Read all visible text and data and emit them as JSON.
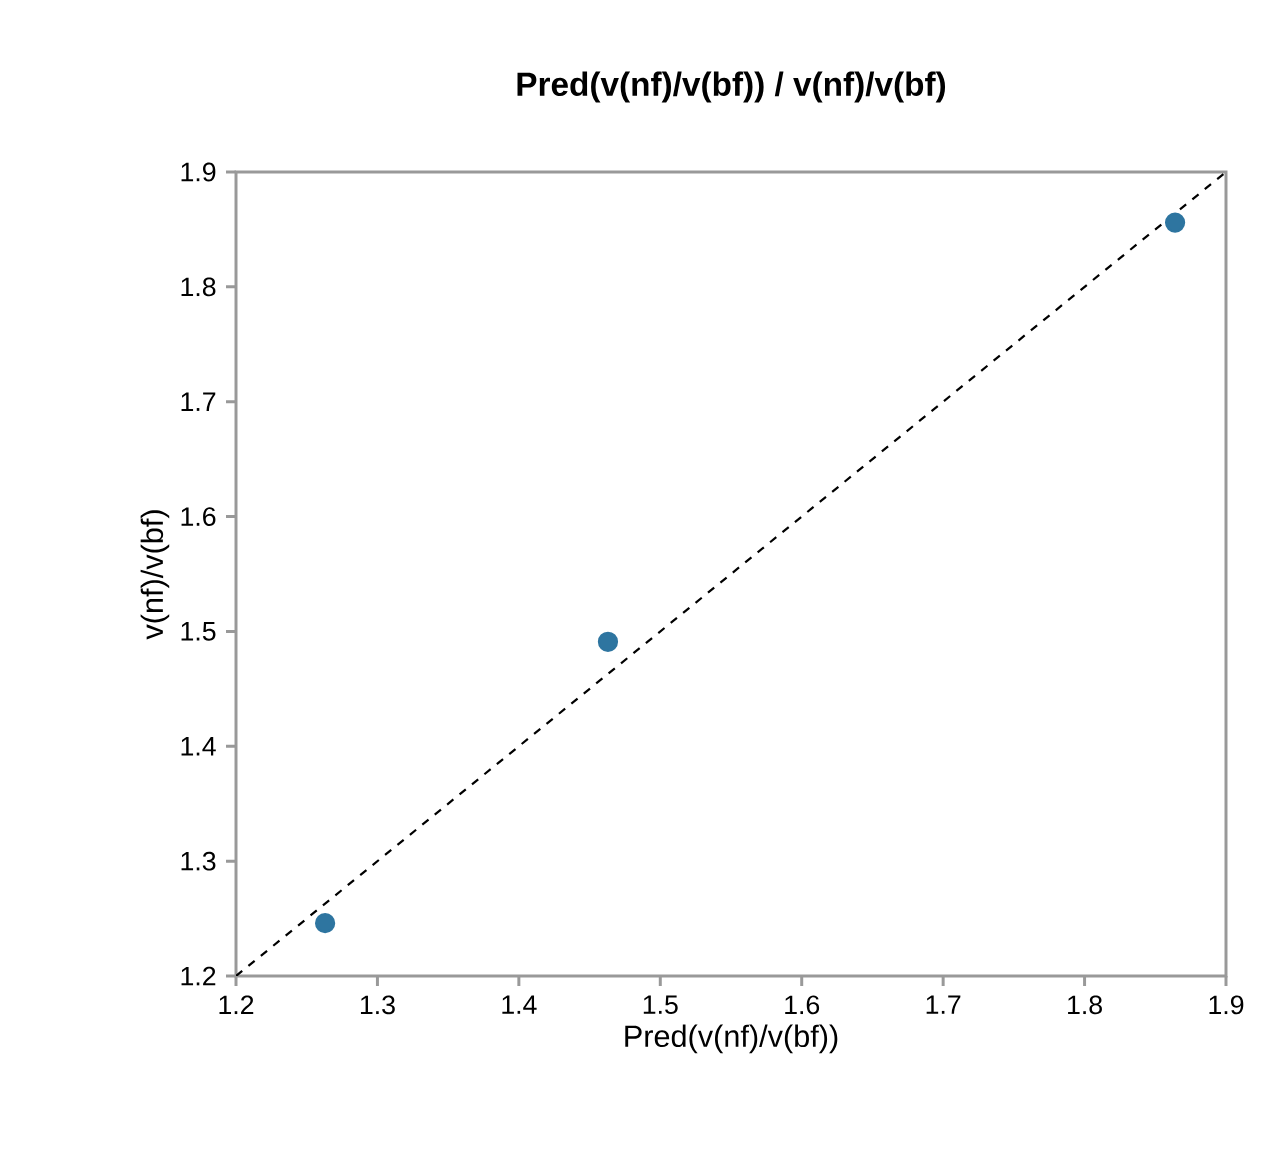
{
  "chart_data": {
    "type": "scatter",
    "title": "Pred(v(nf)/v(bf)) / v(nf)/v(bf)",
    "xlabel": "Pred(v(nf)/v(bf))",
    "ylabel": "v(nf)/v(bf)",
    "xlim": [
      1.2,
      1.9
    ],
    "xticks": [
      1.2,
      1.3,
      1.4,
      1.5,
      1.6,
      1.7,
      1.8,
      1.9
    ],
    "ylim": [
      1.2,
      1.9
    ],
    "yticks": [
      1.2,
      1.3,
      1.4,
      1.5,
      1.6,
      1.7,
      1.8,
      1.9
    ],
    "series": [
      {
        "marker": "circle",
        "color": "#2e75a0",
        "x": [
          1.263,
          1.463,
          1.864
        ],
        "values": [
          1.246,
          1.491,
          1.856
        ]
      },
      {
        "type": "line",
        "line_style": "dashed",
        "marker": "none",
        "color": "#000000",
        "x": [
          1.2,
          1.9
        ],
        "values": [
          1.2,
          1.9
        ]
      }
    ]
  }
}
